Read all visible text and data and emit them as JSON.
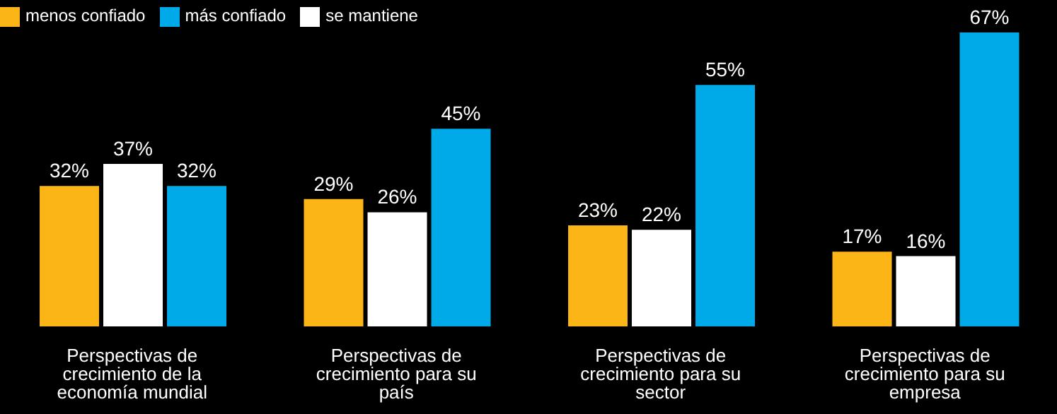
{
  "chart_data": {
    "type": "bar",
    "categories": [
      "Perspectivas de crecimiento de la economía mundial",
      "Perspectivas de crecimiento para su país",
      "Perspectivas de crecimiento para su sector",
      "Perspectivas de crecimiento para su empresa"
    ],
    "series": [
      {
        "name": "menos confiado",
        "color": "#fbb516",
        "values": [
          32,
          29,
          23,
          17
        ],
        "value_labels": [
          "32%",
          "29%",
          "23%",
          "17%"
        ]
      },
      {
        "name": "se mantiene",
        "color": "#ffffff",
        "values": [
          37,
          26,
          22,
          16
        ],
        "value_labels": [
          "37%",
          "26%",
          "22%",
          "16%"
        ]
      },
      {
        "name": "más confiado",
        "color": "#00a9e8",
        "values": [
          32,
          45,
          55,
          67
        ],
        "value_labels": [
          "32%",
          "45%",
          "55%",
          "67%"
        ]
      }
    ],
    "legend": "top left",
    "grid": false
  }
}
